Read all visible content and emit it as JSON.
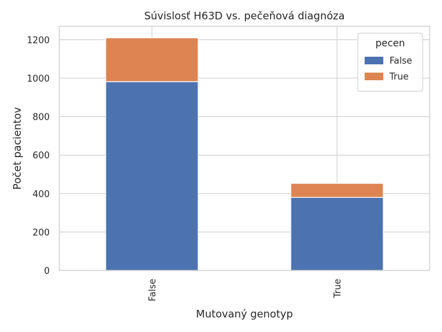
{
  "chart_data": {
    "type": "bar",
    "stacked": true,
    "title": "Súvislosť H63D vs. pečeňová diagnóza",
    "xlabel": "Mutovaný genotyp",
    "ylabel": "Počet pacientov",
    "categories": [
      "False",
      "True"
    ],
    "series": [
      {
        "name": "False",
        "values": [
          982,
          380
        ],
        "color": "#4c72b0"
      },
      {
        "name": "True",
        "values": [
          228,
          73
        ],
        "color": "#dd8452"
      }
    ],
    "ylim": [
      0,
      1270
    ],
    "yticks": [
      0,
      200,
      400,
      600,
      800,
      1000,
      1200
    ],
    "grid": true,
    "legend": {
      "title": "pecen",
      "position": "top-right"
    }
  }
}
